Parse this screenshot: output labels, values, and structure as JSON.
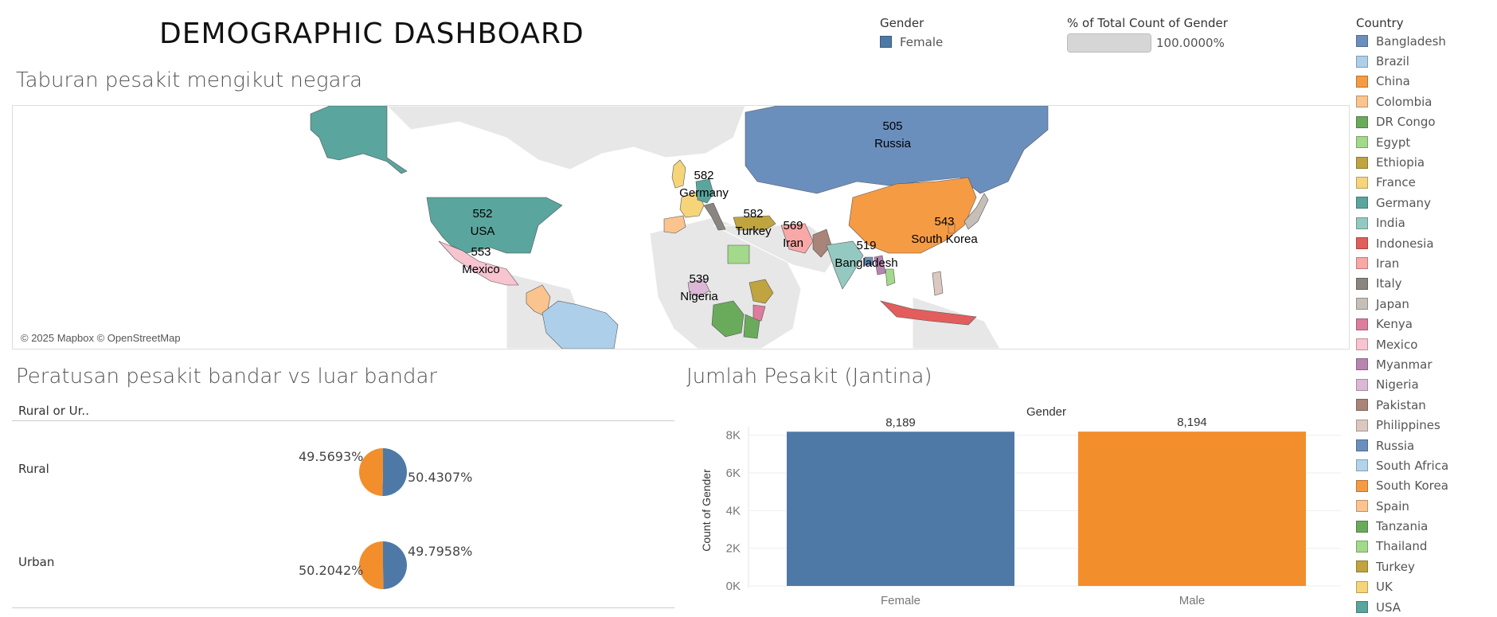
{
  "dashboard_title": "DEMOGRAPHIC DASHBOARD",
  "gender_legend": {
    "title": "Gender",
    "item": "Female",
    "item_color": "#4e79a7"
  },
  "pct_legend": {
    "title": "% of Total Count of Gender",
    "value": "100.0000%",
    "fill_fraction": 1.0
  },
  "country_legend": {
    "title": "Country",
    "items": [
      {
        "name": "Bangladesh",
        "color": "#6b8fbd"
      },
      {
        "name": "Brazil",
        "color": "#aecfea"
      },
      {
        "name": "China",
        "color": "#f59b44"
      },
      {
        "name": "Colombia",
        "color": "#fbc48f"
      },
      {
        "name": "DR Congo",
        "color": "#6aab5b"
      },
      {
        "name": "Egypt",
        "color": "#a3d98a"
      },
      {
        "name": "Ethiopia",
        "color": "#bfa43f"
      },
      {
        "name": "France",
        "color": "#f6d57a"
      },
      {
        "name": "Germany",
        "color": "#5aa59d"
      },
      {
        "name": "India",
        "color": "#94c9c1"
      },
      {
        "name": "Indonesia",
        "color": "#e35d5d"
      },
      {
        "name": "Iran",
        "color": "#f8a8a6"
      },
      {
        "name": "Italy",
        "color": "#8b8580"
      },
      {
        "name": "Japan",
        "color": "#c6bfb7"
      },
      {
        "name": "Kenya",
        "color": "#dd7c9d"
      },
      {
        "name": "Mexico",
        "color": "#f7c4d0"
      },
      {
        "name": "Myanmar",
        "color": "#b884b0"
      },
      {
        "name": "Nigeria",
        "color": "#dbb8d6"
      },
      {
        "name": "Pakistan",
        "color": "#a88578"
      },
      {
        "name": "Philippines",
        "color": "#dcc8c0"
      },
      {
        "name": "Russia",
        "color": "#6b8fbd"
      },
      {
        "name": "South Africa",
        "color": "#b2d3ec"
      },
      {
        "name": "South Korea",
        "color": "#f59b44"
      },
      {
        "name": "Spain",
        "color": "#fbc48f"
      },
      {
        "name": "Tanzania",
        "color": "#6aab5b"
      },
      {
        "name": "Thailand",
        "color": "#a3d98a"
      },
      {
        "name": "Turkey",
        "color": "#bfa43f"
      },
      {
        "name": "UK",
        "color": "#f6d57a"
      },
      {
        "name": "USA",
        "color": "#5aa59d"
      }
    ]
  },
  "map_section": {
    "title": "Taburan pesakit mengikut negara",
    "attribution": "© 2025 Mapbox © OpenStreetMap",
    "labels": [
      {
        "country": "Russia",
        "value": "505"
      },
      {
        "country": "Germany",
        "value": "582"
      },
      {
        "country": "USA",
        "value": "552"
      },
      {
        "country": "Mexico",
        "value": "553"
      },
      {
        "country": "Turkey",
        "value": "582"
      },
      {
        "country": "Iran",
        "value": "569"
      },
      {
        "country": "South Korea",
        "value": "543"
      },
      {
        "country": "Bangladesh",
        "value": "519"
      },
      {
        "country": "Nigeria",
        "value": "539"
      }
    ]
  },
  "pie_section": {
    "title": "Peratusan pesakit bandar vs luar bandar",
    "column_header": "Rural or Ur..",
    "rows": [
      {
        "label": "Rural",
        "orange_pct": "49.5693%",
        "blue_pct": "50.4307%"
      },
      {
        "label": "Urban",
        "orange_pct": "50.2042%",
        "blue_pct": "49.7958%"
      }
    ]
  },
  "bar_section": {
    "title": "Jumlah Pesakit (Jantina)"
  },
  "chart_data": [
    {
      "type": "pie",
      "title": "Peratusan pesakit bandar vs luar bandar",
      "categories": [
        "Rural",
        "Urban"
      ],
      "series": [
        {
          "values": [
            49.5693,
            50.2042
          ],
          "color": "#f28e2b"
        },
        {
          "values": [
            50.4307,
            49.7958
          ],
          "color": "#4e79a7"
        }
      ]
    },
    {
      "type": "bar",
      "title": "Jumlah Pesakit (Jantina)",
      "top_label": "Gender",
      "categories": [
        "Female",
        "Male"
      ],
      "values": [
        8189,
        8194
      ],
      "value_labels": [
        "8,189",
        "8,194"
      ],
      "colors": [
        "#4e79a7",
        "#f28e2b"
      ],
      "ylabel": "Count of Gender",
      "yticks": [
        "0K",
        "2K",
        "4K",
        "6K",
        "8K"
      ],
      "ylim": [
        0,
        8200
      ],
      "grid": true
    }
  ]
}
